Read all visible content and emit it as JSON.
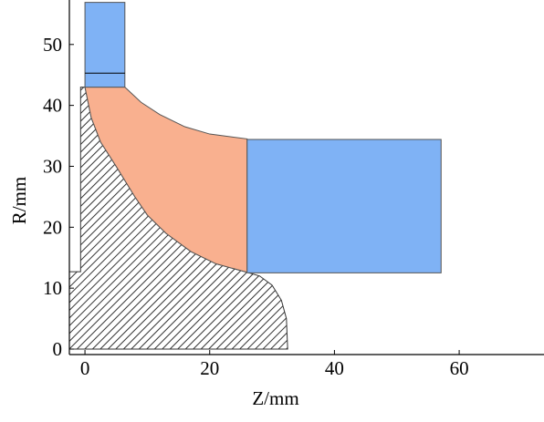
{
  "chart_data": {
    "type": "region",
    "xlabel": "Z/mm",
    "ylabel": "R/mm",
    "xlim": [
      -2.5,
      73.6
    ],
    "ylim": [
      -0.9,
      57.3
    ],
    "xticks": [
      0,
      20,
      40,
      60
    ],
    "yticks": [
      0,
      10,
      20,
      30,
      40,
      50
    ],
    "series": [
      {
        "color": "#333333",
        "fill": "hatch",
        "x": [
          -2.5,
          -2.5,
          -0.7,
          -0.7,
          0,
          1,
          2.5,
          5,
          8,
          10,
          13,
          17,
          21,
          26,
          28,
          30,
          31.5,
          32.3,
          32.5,
          -2.5
        ],
        "y": [
          0,
          12.7,
          12.7,
          43,
          43,
          38,
          34,
          30,
          25,
          22,
          19,
          16,
          14,
          12.6,
          12,
          10.5,
          8,
          5,
          0,
          0
        ]
      },
      {
        "color": "#f9b08f",
        "fill": "solid",
        "x": [
          0,
          6.4,
          9,
          12,
          16,
          20,
          26,
          26,
          21,
          17,
          13,
          10,
          8,
          5,
          2.5,
          1,
          0
        ],
        "y": [
          43,
          43,
          40.5,
          38.5,
          36.5,
          35.3,
          34.5,
          12.6,
          14,
          16,
          19,
          22,
          25,
          30,
          34,
          38,
          43
        ]
      },
      {
        "color": "#7fb2f5",
        "fill": "solid",
        "x": [
          0,
          6.4,
          6.4,
          0,
          0
        ],
        "y": [
          43,
          43,
          56.9,
          56.9,
          43
        ]
      },
      {
        "color": "#7fb2f5",
        "fill": "solid",
        "x": [
          26,
          57.1,
          57.1,
          26,
          26
        ],
        "y": [
          12.5,
          12.5,
          34.4,
          34.4,
          12.5
        ]
      },
      {
        "color": "#000000",
        "fill": "none",
        "x": [
          0,
          6.4
        ],
        "y": [
          45.3,
          45.3
        ]
      }
    ]
  }
}
